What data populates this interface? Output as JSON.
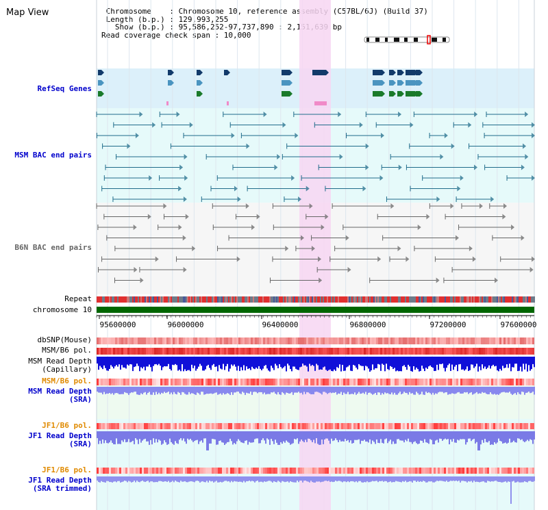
{
  "page": {
    "title": "Map View"
  },
  "info": {
    "line1": " Chromosome    : Chromosome 10, reference assembly (C57BL/6J) (Build 37)",
    "line2": " Length (b.p.) : 129,993,255",
    "line3": "   Show (b.p.) : 95,586,252-97,737,890 : 2,151,639 bp",
    "line4": "Read coverage check span : 10,000"
  },
  "tracks": {
    "refseq": "RefSeq Genes",
    "msm_bac": "MSM BAC end pairs",
    "b6n_bac": "B6N BAC end pairs",
    "repeat": "Repeat",
    "chromosome": "chromosome 10",
    "dbsnp": "dbSNP(Mouse)",
    "msm_b6_pol": "MSM/B6 pol.",
    "msm_read_cap_1": "MSM Read Depth",
    "msm_read_cap_2": "(Capillary)",
    "msm_b6_pol_2": "MSM/B6 pol.",
    "msm_read_sra_1": "MSM Read Depth",
    "msm_read_sra_2": "(SRA)",
    "jf1_b6_pol": "JF1/B6 pol.",
    "jf1_read_sra_1": "JF1 Read Depth",
    "jf1_read_sra_2": "(SRA)",
    "jf1_b6_pol_2": "JF1/B6 pol.",
    "jf1_read_trim_1": "JF1 Read Depth",
    "jf1_read_trim_2": "(SRA trimmed)"
  },
  "axis": {
    "ticks": [
      "95600000",
      "96000000",
      "96400000",
      "96800000",
      "97200000",
      "97600000"
    ]
  },
  "colors": {
    "label_blue": "#0000cc",
    "label_orange": "#e08a00",
    "refseq_bg": "#dcf0fa",
    "bac_bg": "#e6fafa",
    "highlight": "#f7d6f2",
    "chromosome_bar": "#006600"
  }
}
